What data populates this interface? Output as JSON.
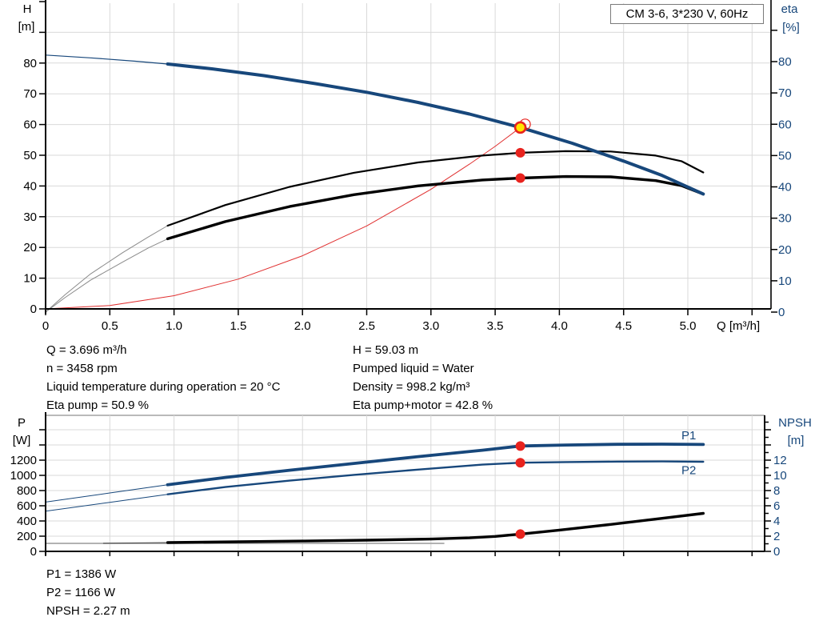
{
  "pump_title": "CM 3-6, 3*230 V, 60Hz",
  "colors": {
    "curve_blue": "#17477b",
    "marker_red": "#e8231e",
    "marker_yellow": "#ffe600",
    "system_red": "#e03030",
    "grid_grey": "#d9d9d9",
    "thin_grey": "#8a8a8a"
  },
  "operating_point": {
    "col1": [
      "Q = 3.696 m³/h",
      "n = 3458 rpm",
      "Liquid temperature during operation = 20 °C",
      "Eta pump = 50.9 %"
    ],
    "col2": [
      "H = 59.03 m",
      "Pumped liquid = Water",
      "Density = 998.2 kg/m³",
      "Eta pump+motor = 42.8 %"
    ]
  },
  "power_point": [
    "P1 = 1386 W",
    "P2 = 1166 W",
    "NPSH = 2.27 m"
  ],
  "chart_data": [
    {
      "id": "head_eta_chart",
      "type": "line",
      "title": "CM 3-6, 3*230 V, 60Hz",
      "x_axis": {
        "label": "Q [m³/h]",
        "tick_values": [
          0,
          0.5,
          1,
          1.5,
          2,
          2.5,
          3,
          3.5,
          4,
          4.5,
          5
        ],
        "tick_labels": [
          "0",
          "0.5",
          "1.0",
          "1.5",
          "2.0",
          "2.5",
          "3.0",
          "3.5",
          "4.0",
          "4.5",
          "5.0"
        ],
        "range": [
          0,
          5.65
        ],
        "grid_step": 0.5
      },
      "y_left": {
        "label": "H",
        "unit": "[m]",
        "labeled_ticks": [
          0,
          10,
          20,
          30,
          40,
          50,
          60,
          70,
          80
        ],
        "minor_to": 100,
        "tick_step": 10,
        "range": [
          0,
          101
        ],
        "grid": true
      },
      "y_right": {
        "label": "eta",
        "unit": "[%]",
        "labeled_ticks": [
          0,
          10,
          20,
          30,
          40,
          50,
          60,
          70,
          80
        ],
        "minor_to": 90,
        "tick_step": 10,
        "range": [
          0,
          97
        ],
        "grid": false
      },
      "series": [
        {
          "id": "system",
          "name": "System curve",
          "axis": "left",
          "points": [
            [
              0,
              0
            ],
            [
              0.5,
              1.1
            ],
            [
              1,
              4.3
            ],
            [
              1.5,
              9.7
            ],
            [
              2,
              17.3
            ],
            [
              2.5,
              27
            ],
            [
              3,
              38.9
            ],
            [
              3.3,
              47.1
            ],
            [
              3.5,
              52.9
            ],
            [
              3.696,
              59.03
            ]
          ]
        },
        {
          "id": "eta_pump_thin",
          "name": "Eta pump (low flow)",
          "axis": "right",
          "points": [
            [
              0,
              0
            ],
            [
              0.15,
              5.5
            ],
            [
              0.35,
              12.2
            ],
            [
              0.6,
              19
            ],
            [
              0.8,
              24
            ],
            [
              0.95,
              27.6
            ]
          ]
        },
        {
          "id": "eta_motor_thin",
          "name": "Eta pump+motor (low flow)",
          "axis": "right",
          "points": [
            [
              0,
              0
            ],
            [
              0.15,
              4.6
            ],
            [
              0.35,
              10.2
            ],
            [
              0.6,
              16
            ],
            [
              0.8,
              20.5
            ],
            [
              0.95,
              23.4
            ]
          ]
        },
        {
          "id": "eta_pump",
          "name": "Eta pump",
          "axis": "right",
          "points": [
            [
              0.95,
              27.6
            ],
            [
              1.4,
              34.2
            ],
            [
              1.9,
              40
            ],
            [
              2.4,
              44.5
            ],
            [
              2.9,
              47.8
            ],
            [
              3.4,
              50
            ],
            [
              3.7,
              50.9
            ],
            [
              4.05,
              51.4
            ],
            [
              4.4,
              51.3
            ],
            [
              4.75,
              50
            ],
            [
              4.95,
              48.2
            ],
            [
              5.12,
              44.6
            ]
          ]
        },
        {
          "id": "eta_motor",
          "name": "Eta pump+motor",
          "axis": "right",
          "points": [
            [
              0.95,
              23.4
            ],
            [
              1.4,
              28.9
            ],
            [
              1.9,
              33.7
            ],
            [
              2.4,
              37.5
            ],
            [
              2.9,
              40.3
            ],
            [
              3.4,
              42.2
            ],
            [
              3.7,
              42.8
            ],
            [
              4.05,
              43.3
            ],
            [
              4.4,
              43.2
            ],
            [
              4.75,
              42
            ],
            [
              4.95,
              40.4
            ],
            [
              5.12,
              37.7
            ]
          ]
        },
        {
          "id": "hq_thin",
          "name": "H-Q (low flow)",
          "axis": "left",
          "points": [
            [
              0,
              82.6
            ],
            [
              0.35,
              81.7
            ],
            [
              0.7,
              80.6
            ],
            [
              0.95,
              79.7
            ]
          ]
        },
        {
          "id": "hq",
          "name": "H-Q curve",
          "axis": "left",
          "points": [
            [
              0.95,
              79.7
            ],
            [
              1.3,
              78.1
            ],
            [
              1.7,
              75.9
            ],
            [
              2.1,
              73.3
            ],
            [
              2.5,
              70.5
            ],
            [
              2.9,
              67.2
            ],
            [
              3.3,
              63.4
            ],
            [
              3.7,
              59
            ],
            [
              4.1,
              53.9
            ],
            [
              4.5,
              48.1
            ],
            [
              4.8,
              43.4
            ],
            [
              5.12,
              37.4
            ]
          ]
        }
      ],
      "markers": [
        {
          "id": "duty_ghost",
          "kind": "ghost",
          "axis": "left",
          "x": 3.696,
          "y": 59.03
        },
        {
          "id": "eta_pump_point",
          "kind": "dot",
          "axis": "right",
          "x": 3.696,
          "y": 50.9
        },
        {
          "id": "eta_motor_point",
          "kind": "dot",
          "axis": "right",
          "x": 3.696,
          "y": 42.8
        },
        {
          "id": "duty_point",
          "kind": "duty",
          "axis": "left",
          "x": 3.696,
          "y": 59.03
        }
      ]
    },
    {
      "id": "power_npsh_chart",
      "type": "line",
      "x_axis": {
        "label": "",
        "tick_values": [
          0,
          0.5,
          1,
          1.5,
          2,
          2.5,
          3,
          3.5,
          4,
          4.5,
          5,
          5.5
        ],
        "tick_labels": [],
        "range": [
          0,
          5.6
        ],
        "grid_step": 0.5
      },
      "y_left": {
        "label": "P",
        "unit": "[W]",
        "labeled_ticks": [
          0,
          200,
          400,
          600,
          800,
          1000,
          1200
        ],
        "minor_to": 1600,
        "tick_step": 200,
        "range": [
          0,
          1790
        ],
        "grid": true
      },
      "y_right": {
        "label": "NPSH",
        "unit": "[m]",
        "labeled_ticks": [
          0,
          2,
          4,
          6,
          8,
          10,
          12
        ],
        "minor_to": 17,
        "tick_step": 1,
        "label_step": 2,
        "range": [
          0,
          17.9
        ],
        "grid": false
      },
      "series": [
        {
          "id": "npsh_base",
          "name": "NPSH baseline",
          "axis": "right",
          "points": [
            [
              0,
              1.05
            ],
            [
              3.1,
              1.05
            ]
          ]
        },
        {
          "id": "npsh_thin",
          "name": "NPSH (low flow)",
          "axis": "right",
          "points": [
            [
              0.45,
              1.06
            ],
            [
              0.95,
              1.16
            ]
          ]
        },
        {
          "id": "npsh",
          "name": "NPSH",
          "axis": "right",
          "points": [
            [
              0.95,
              1.16
            ],
            [
              1.5,
              1.26
            ],
            [
              2,
              1.36
            ],
            [
              2.5,
              1.47
            ],
            [
              3,
              1.62
            ],
            [
              3.3,
              1.78
            ],
            [
              3.5,
              1.97
            ],
            [
              3.696,
              2.27
            ],
            [
              4,
              2.8
            ],
            [
              4.4,
              3.55
            ],
            [
              4.8,
              4.35
            ],
            [
              5.12,
              5
            ]
          ]
        },
        {
          "id": "p2_thin",
          "name": "P2 (low flow)",
          "axis": "left",
          "points": [
            [
              0,
              528
            ],
            [
              0.5,
              645
            ],
            [
              0.95,
              751
            ]
          ]
        },
        {
          "id": "p2",
          "name": "P2",
          "axis": "left",
          "points": [
            [
              0.95,
              751
            ],
            [
              1.4,
              846
            ],
            [
              1.9,
              931
            ],
            [
              2.4,
              1006
            ],
            [
              2.9,
              1076
            ],
            [
              3.4,
              1141
            ],
            [
              3.696,
              1166
            ],
            [
              4.05,
              1175
            ],
            [
              4.45,
              1181
            ],
            [
              4.8,
              1183
            ],
            [
              5.12,
              1179
            ]
          ]
        },
        {
          "id": "p1_thin",
          "name": "P1 (low flow)",
          "axis": "left",
          "points": [
            [
              0,
              648
            ],
            [
              0.5,
              768
            ],
            [
              0.95,
              877
            ]
          ]
        },
        {
          "id": "p1",
          "name": "P1",
          "axis": "left",
          "points": [
            [
              0.95,
              877
            ],
            [
              1.4,
              973
            ],
            [
              1.9,
              1067
            ],
            [
              2.4,
              1157
            ],
            [
              2.9,
              1246
            ],
            [
              3.4,
              1331
            ],
            [
              3.696,
              1386
            ],
            [
              4.05,
              1399
            ],
            [
              4.45,
              1408
            ],
            [
              4.8,
              1410
            ],
            [
              5.12,
              1406
            ]
          ]
        }
      ],
      "series_labels": [
        {
          "id": "p1_label",
          "text": "P1",
          "x": 4.95,
          "value": 1475,
          "axis": "left"
        },
        {
          "id": "p2_label",
          "text": "P2",
          "x": 4.95,
          "value": 1015,
          "axis": "left"
        }
      ],
      "markers": [
        {
          "id": "p1_point",
          "kind": "dot",
          "axis": "left",
          "x": 3.696,
          "y": 1386
        },
        {
          "id": "p2_point",
          "kind": "dot",
          "axis": "left",
          "x": 3.696,
          "y": 1166
        },
        {
          "id": "npsh_point",
          "kind": "dot",
          "axis": "right",
          "x": 3.696,
          "y": 2.27
        }
      ]
    }
  ]
}
